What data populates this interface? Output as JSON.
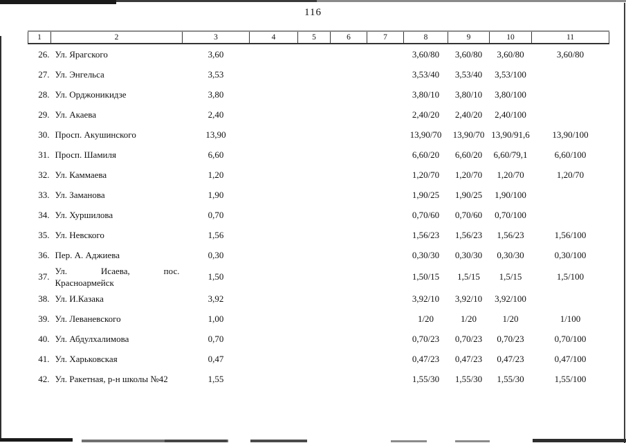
{
  "page": {
    "number": "116"
  },
  "colors": {
    "ink": "#111111",
    "scan_edge": "#1a1a1a"
  },
  "table": {
    "header": [
      "1",
      "2",
      "3",
      "4",
      "5",
      "6",
      "7",
      "8",
      "9",
      "10",
      "11"
    ],
    "rows": [
      [
        "26.",
        "Ул. Ярагского",
        "3,60",
        "",
        "",
        "",
        "",
        "3,60/80",
        "3,60/80",
        "3,60/80",
        "3,60/80"
      ],
      [
        "27.",
        "Ул. Энгельса",
        "3,53",
        "",
        "",
        "",
        "",
        "3,53/40",
        "3,53/40",
        "3,53/100",
        ""
      ],
      [
        "28.",
        "Ул. Орджоникидзе",
        "3,80",
        "",
        "",
        "",
        "",
        "3,80/10",
        "3,80/10",
        "3,80/100",
        ""
      ],
      [
        "29.",
        "Ул. Акаева",
        "2,40",
        "",
        "",
        "",
        "",
        "2,40/20",
        "2,40/20",
        "2,40/100",
        ""
      ],
      [
        "30.",
        "Просп. Акушинского",
        "13,90",
        "",
        "",
        "",
        "",
        "13,90/70",
        "13,90/70",
        "13,90/91,6",
        "13,90/100"
      ],
      [
        "31.",
        "Просп. Шамиля",
        "6,60",
        "",
        "",
        "",
        "",
        "6,60/20",
        "6,60/20",
        "6,60/79,1",
        "6,60/100"
      ],
      [
        "32.",
        "Ул. Каммаева",
        "1,20",
        "",
        "",
        "",
        "",
        "1,20/70",
        "1,20/70",
        "1,20/70",
        "1,20/70"
      ],
      [
        "33.",
        "Ул. Заманова",
        "1,90",
        "",
        "",
        "",
        "",
        "1,90/25",
        "1,90/25",
        "1,90/100",
        ""
      ],
      [
        "34.",
        "Ул. Хуршилова",
        "0,70",
        "",
        "",
        "",
        "",
        "0,70/60",
        "0,70/60",
        "0,70/100",
        ""
      ],
      [
        "35.",
        "Ул. Невского",
        "1,56",
        "",
        "",
        "",
        "",
        "1,56/23",
        "1,56/23",
        "1,56/23",
        "1,56/100"
      ],
      [
        "36.",
        "Пер. А. Аджиева",
        "0,30",
        "",
        "",
        "",
        "",
        "0,30/30",
        "0,30/30",
        "0,30/30",
        "0,30/100"
      ],
      [
        "37.",
        "Ул. Исаева, пос.\nКрасноармейск",
        "1,50",
        "",
        "",
        "",
        "",
        "1,50/15",
        "1,5/15",
        "1,5/15",
        "1,5/100"
      ],
      [
        "38.",
        "Ул. И.Казака",
        "3,92",
        "",
        "",
        "",
        "",
        "3,92/10",
        "3,92/10",
        "3,92/100",
        ""
      ],
      [
        "39.",
        "Ул. Леваневского",
        "1,00",
        "",
        "",
        "",
        "",
        "1/20",
        "1/20",
        "1/20",
        "1/100"
      ],
      [
        "40.",
        "Ул. Абдулхалимова",
        "0,70",
        "",
        "",
        "",
        "",
        "0,70/23",
        "0,70/23",
        "0,70/23",
        "0,70/100"
      ],
      [
        "41.",
        "Ул. Харьковская",
        "0,47",
        "",
        "",
        "",
        "",
        "0,47/23",
        "0,47/23",
        "0,47/23",
        "0,47/100"
      ],
      [
        "42.",
        "Ул. Ракетная,  р-н школы №42",
        "1,55",
        "",
        "",
        "",
        "",
        "1,55/30",
        "1,55/30",
        "1,55/30",
        "1,55/100"
      ]
    ]
  }
}
